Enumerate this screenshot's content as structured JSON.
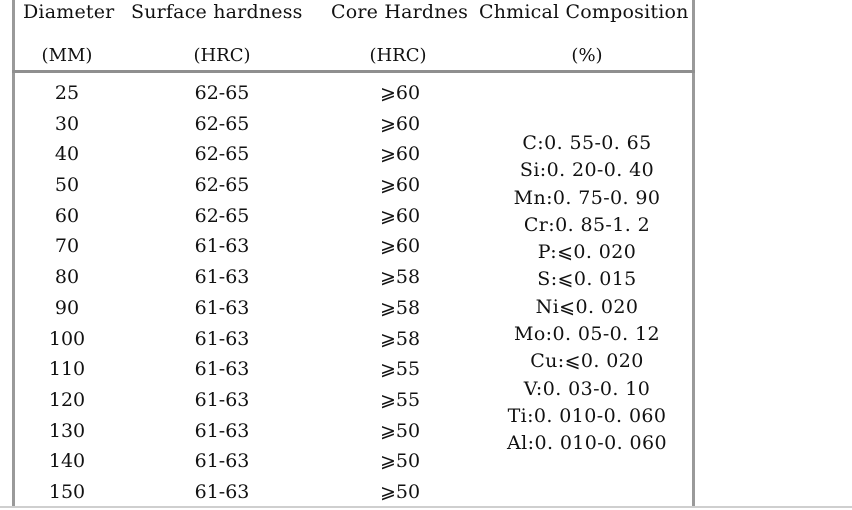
{
  "headers": {
    "diameter": "Diameter",
    "surface": "Surface hardness",
    "core": "Core Hardnes",
    "chem": "Chmical Composition"
  },
  "units": {
    "diameter": "(MM)",
    "surface": "(HRC)",
    "core": "(HRC)",
    "chem": "(%)"
  },
  "rows": [
    {
      "diameter": "25",
      "surface": "62-65",
      "core": "⩾60"
    },
    {
      "diameter": "30",
      "surface": "62-65",
      "core": "⩾60"
    },
    {
      "diameter": "40",
      "surface": "62-65",
      "core": "⩾60"
    },
    {
      "diameter": "50",
      "surface": "62-65",
      "core": "⩾60"
    },
    {
      "diameter": "60",
      "surface": "62-65",
      "core": "⩾60"
    },
    {
      "diameter": "70",
      "surface": "61-63",
      "core": "⩾60"
    },
    {
      "diameter": "80",
      "surface": "61-63",
      "core": "⩾58"
    },
    {
      "diameter": "90",
      "surface": "61-63",
      "core": "⩾58"
    },
    {
      "diameter": "100",
      "surface": "61-63",
      "core": "⩾58"
    },
    {
      "diameter": "110",
      "surface": "61-63",
      "core": "⩾55"
    },
    {
      "diameter": "120",
      "surface": "61-63",
      "core": "⩾55"
    },
    {
      "diameter": "130",
      "surface": "61-63",
      "core": "⩾50"
    },
    {
      "diameter": "140",
      "surface": "61-63",
      "core": "⩾50"
    },
    {
      "diameter": "150",
      "surface": "61-63",
      "core": "⩾50"
    }
  ],
  "composition": [
    "C:0. 55-0. 65",
    "Si:0. 20-0. 40",
    "Mn:0. 75-0. 90",
    "Cr:0. 85-1. 2",
    "P:⩽0. 020",
    "S:⩽0. 015",
    "Ni⩽0. 020",
    "Mo:0. 05-0. 12",
    "Cu:⩽0. 020",
    "V:0. 03-0. 10",
    "Ti:0. 010-0. 060",
    "Al:0. 010-0. 060"
  ]
}
